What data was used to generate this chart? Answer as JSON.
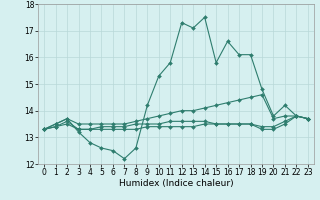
{
  "xlabel": "Humidex (Indice chaleur)",
  "x": [
    0,
    1,
    2,
    3,
    4,
    5,
    6,
    7,
    8,
    9,
    10,
    11,
    12,
    13,
    14,
    15,
    16,
    17,
    18,
    19,
    20,
    21,
    22,
    23
  ],
  "line1": [
    13.3,
    13.5,
    13.7,
    13.2,
    12.8,
    12.6,
    12.5,
    12.2,
    12.6,
    14.2,
    15.3,
    15.8,
    17.3,
    17.1,
    17.5,
    15.8,
    16.6,
    16.1,
    16.1,
    14.8,
    13.8,
    14.2,
    13.8,
    13.7
  ],
  "line2": [
    13.3,
    13.5,
    13.7,
    13.5,
    13.5,
    13.5,
    13.5,
    13.5,
    13.6,
    13.7,
    13.8,
    13.9,
    14.0,
    14.0,
    14.1,
    14.2,
    14.3,
    14.4,
    14.5,
    14.6,
    13.7,
    13.8,
    13.8,
    13.7
  ],
  "line3": [
    13.3,
    13.4,
    13.5,
    13.3,
    13.3,
    13.3,
    13.3,
    13.3,
    13.3,
    13.4,
    13.4,
    13.4,
    13.4,
    13.4,
    13.5,
    13.5,
    13.5,
    13.5,
    13.5,
    13.3,
    13.3,
    13.5,
    13.8,
    13.7
  ],
  "line4": [
    13.3,
    13.4,
    13.6,
    13.3,
    13.3,
    13.4,
    13.4,
    13.4,
    13.5,
    13.5,
    13.5,
    13.6,
    13.6,
    13.6,
    13.6,
    13.5,
    13.5,
    13.5,
    13.5,
    13.4,
    13.4,
    13.6,
    13.8,
    13.7
  ],
  "line_color": "#2e7d6e",
  "bg_color": "#d6f0f0",
  "grid_color": "#b8d8d8",
  "ylim": [
    12.0,
    18.0
  ],
  "xlim": [
    -0.5,
    23.5
  ],
  "yticks": [
    12,
    13,
    14,
    15,
    16,
    17,
    18
  ],
  "xtick_labels": [
    "0",
    "1",
    "2",
    "3",
    "4",
    "5",
    "6",
    "7",
    "8",
    "9",
    "10",
    "11",
    "12",
    "13",
    "14",
    "15",
    "16",
    "17",
    "18",
    "19",
    "20",
    "21",
    "22",
    "23"
  ],
  "marker": "D",
  "markersize": 2.0,
  "linewidth": 0.8,
  "tick_fontsize": 5.5,
  "xlabel_fontsize": 6.5
}
